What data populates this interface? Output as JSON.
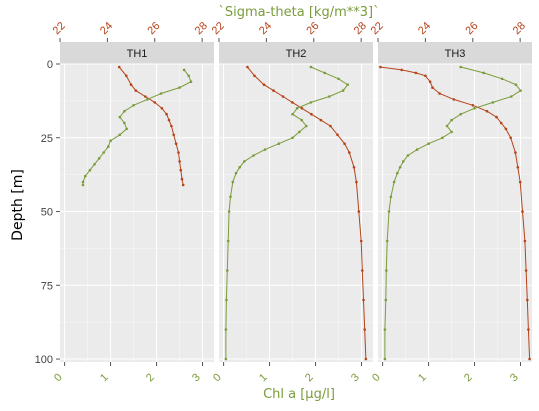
{
  "chart_data": {
    "type": "line",
    "top_axis_label": "`Sigma-theta [kg/m**3]`",
    "bottom_axis_label": "Chl a [µg/l]",
    "y_axis_label": "Depth [m]",
    "y_reversed": true,
    "ylim": [
      0,
      101
    ],
    "y_ticks": [
      0,
      25,
      50,
      75,
      100
    ],
    "y_tick_labels": [
      "0",
      "25",
      "50",
      "75",
      "100"
    ],
    "x_bottom_lim": [
      -0.1,
      3.25
    ],
    "x_bottom_ticks": [
      0,
      1,
      2,
      3
    ],
    "x_bottom_tick_labels": [
      "0",
      "1",
      "2",
      "3"
    ],
    "x_top_lim": [
      22,
      28.5
    ],
    "x_top_ticks": [
      22,
      24,
      26,
      28
    ],
    "x_top_tick_labels": [
      "22",
      "24",
      "26",
      "28"
    ],
    "colors": {
      "panel_bg": "#ebebeb",
      "strip_bg": "#d9d9d9",
      "grid": "#ffffff",
      "sigma": "#b5431a",
      "chl": "#7a9c3a",
      "tick_text": "#444444"
    },
    "panels": [
      {
        "name": "TH1",
        "series": [
          {
            "name": "Sigma-theta",
            "axis": "top",
            "color": "#b5431a",
            "depth": [
              1,
              4,
              7,
              9,
              11,
              13,
              15,
              17,
              19,
              21,
              24,
              27,
              30,
              33,
              36,
              39,
              41
            ],
            "values": [
              24.5,
              24.8,
              25.0,
              25.2,
              25.6,
              26.0,
              26.3,
              26.5,
              26.6,
              26.7,
              26.8,
              26.9,
              27.0,
              27.05,
              27.1,
              27.15,
              27.2
            ]
          },
          {
            "name": "Chl a",
            "axis": "bottom",
            "color": "#7a9c3a",
            "depth": [
              2,
              4,
              6,
              8,
              10,
              12,
              14,
              16,
              18,
              20,
              22,
              24,
              26,
              28,
              30,
              32,
              34,
              36,
              38,
              40,
              41
            ],
            "values": [
              2.6,
              2.7,
              2.75,
              2.5,
              2.1,
              1.8,
              1.5,
              1.3,
              1.2,
              1.3,
              1.35,
              1.2,
              1.0,
              0.95,
              0.85,
              0.75,
              0.65,
              0.55,
              0.45,
              0.4,
              0.4
            ]
          }
        ]
      },
      {
        "name": "TH2",
        "series": [
          {
            "name": "Sigma-theta",
            "axis": "top",
            "color": "#b5431a",
            "depth": [
              1,
              4,
              7,
              9,
              11,
              13,
              15,
              17,
              19,
              21,
              24,
              27,
              30,
              35,
              40,
              50,
              60,
              70,
              80,
              90,
              100
            ],
            "values": [
              23.2,
              23.5,
              23.9,
              24.3,
              24.7,
              25.1,
              25.5,
              25.9,
              26.3,
              26.7,
              27.0,
              27.3,
              27.5,
              27.7,
              27.8,
              27.9,
              28.0,
              28.05,
              28.1,
              28.15,
              28.2
            ]
          },
          {
            "name": "Chl a",
            "axis": "bottom",
            "color": "#7a9c3a",
            "depth": [
              1,
              3,
              5,
              7,
              9,
              11,
              13,
              15,
              17,
              19,
              21,
              23,
              25,
              27,
              29,
              31,
              33,
              35,
              37,
              40,
              45,
              50,
              60,
              70,
              80,
              90,
              100
            ],
            "values": [
              1.9,
              2.2,
              2.5,
              2.7,
              2.6,
              2.3,
              1.9,
              1.6,
              1.5,
              1.7,
              1.8,
              1.65,
              1.5,
              1.2,
              0.9,
              0.65,
              0.45,
              0.35,
              0.27,
              0.2,
              0.15,
              0.12,
              0.1,
              0.08,
              0.06,
              0.05,
              0.05
            ]
          }
        ]
      },
      {
        "name": "TH3",
        "series": [
          {
            "name": "Sigma-theta",
            "axis": "top",
            "color": "#b5431a",
            "depth": [
              1,
              2,
              3,
              4,
              6,
              8,
              10,
              12,
              14,
              16,
              18,
              20,
              22,
              25,
              30,
              35,
              40,
              50,
              60,
              70,
              80,
              90,
              100
            ],
            "values": [
              22.1,
              23.0,
              23.6,
              24.0,
              24.2,
              24.3,
              24.6,
              25.2,
              26.0,
              26.6,
              27.0,
              27.2,
              27.4,
              27.6,
              27.8,
              27.9,
              28.0,
              28.1,
              28.2,
              28.25,
              28.3,
              28.35,
              28.4
            ]
          },
          {
            "name": "Chl a",
            "axis": "bottom",
            "color": "#7a9c3a",
            "depth": [
              1,
              3,
              5,
              7,
              9,
              11,
              13,
              15,
              17,
              19,
              21,
              23,
              25,
              27,
              29,
              31,
              33,
              35,
              37,
              40,
              45,
              50,
              60,
              70,
              80,
              90,
              100
            ],
            "values": [
              1.7,
              2.2,
              2.6,
              2.9,
              3.0,
              2.8,
              2.4,
              2.0,
              1.7,
              1.5,
              1.4,
              1.5,
              1.3,
              1.0,
              0.75,
              0.55,
              0.45,
              0.38,
              0.32,
              0.25,
              0.18,
              0.14,
              0.1,
              0.08,
              0.07,
              0.05,
              0.05
            ]
          }
        ]
      }
    ]
  }
}
